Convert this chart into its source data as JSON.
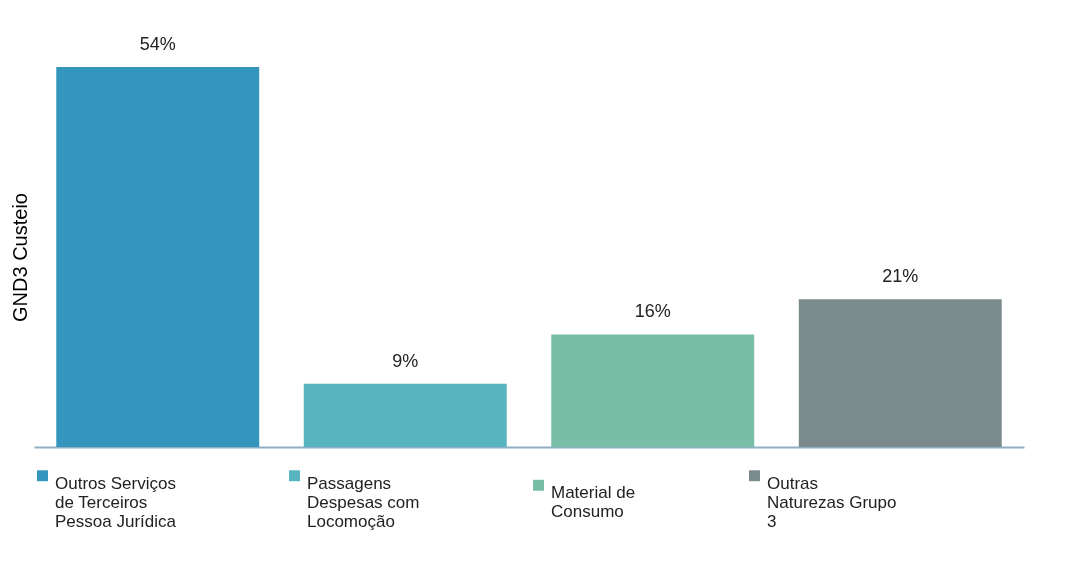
{
  "chart_data": {
    "type": "bar",
    "ylabel": "GND3 Custeio",
    "categories": [
      null,
      null,
      null,
      null
    ],
    "stacked": true,
    "legend": "bottom",
    "grid": false,
    "series": [
      {
        "name": "Outros Serviços de Terceiros Pessoa Jurídica",
        "color": "#3596bd",
        "values": [
          54,
          null,
          null,
          null
        ],
        "value_labels": [
          "54%",
          null,
          null,
          null
        ]
      },
      {
        "name": "Passagens Despesas com Locomoção",
        "color": "#58b5c0",
        "values": [
          null,
          9,
          null,
          null
        ],
        "value_labels": [
          null,
          "9%",
          null,
          null
        ]
      },
      {
        "name": "Material de Consumo",
        "color": "#77bea6",
        "values": [
          null,
          null,
          16,
          null
        ],
        "value_labels": [
          null,
          null,
          "16%",
          null
        ]
      },
      {
        "name": "Outras Naturezas Grupo 3",
        "color": "#7b8b8d",
        "values": [
          null,
          null,
          null,
          21
        ],
        "value_labels": [
          null,
          null,
          null,
          "21%"
        ]
      }
    ]
  }
}
